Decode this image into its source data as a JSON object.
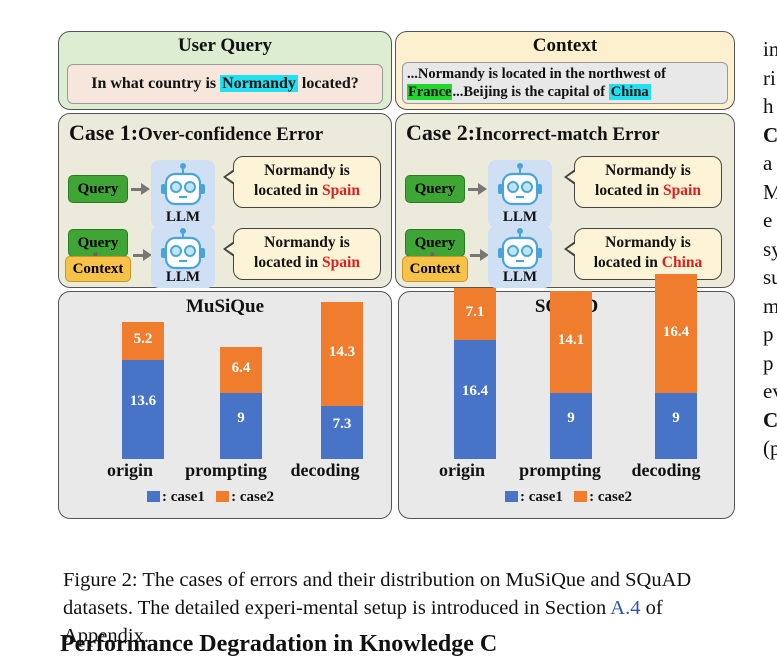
{
  "figure": {
    "user_query": {
      "title": "User Query",
      "text_before": "In what country is ",
      "highlight": "Normandy",
      "text_after": " located?"
    },
    "context": {
      "title": "Context",
      "line1": "...Normandy is located in the northwest of",
      "hl1": "France",
      "mid": "...Beijing is the capital of ",
      "hl2": "China"
    },
    "case1": {
      "title_main": "Case 1:",
      "title_sub": "Over-confidence Error",
      "query_tag": "Query",
      "context_tag": "Context",
      "llm_label": "LLM",
      "bubble1_line1": "Normandy is",
      "bubble1_prefix": "located in ",
      "bubble1_answer": "Spain",
      "bubble2_line1": "Normandy is",
      "bubble2_prefix": "located in ",
      "bubble2_answer": "Spain"
    },
    "case2": {
      "title_main": "Case 2:",
      "title_sub": "Incorrect-match Error",
      "query_tag": "Query",
      "context_tag": "Context",
      "llm_label": "LLM",
      "bubble1_line1": "Normandy is",
      "bubble1_prefix": "located in ",
      "bubble1_answer": "Spain",
      "bubble2_line1": "Normandy is",
      "bubble2_prefix": "located in ",
      "bubble2_answer": "China"
    },
    "colors": {
      "highlight_cyan": "#22e0f0",
      "highlight_green": "#22d62a",
      "query_green": "#3fa535",
      "context_yellow": "#f7c24a",
      "case1_color": "#4874c8",
      "case2_color": "#ef7d2d",
      "answer_red": "#e02020"
    }
  },
  "chart_data": [
    {
      "type": "bar",
      "title": "MuSiQue",
      "categories": [
        "origin",
        "prompting",
        "decoding"
      ],
      "stacked": true,
      "series": [
        {
          "name": ": case1",
          "values": [
            13.6,
            9,
            7.3
          ]
        },
        {
          "name": ": case2",
          "values": [
            5.2,
            6.4,
            14.3
          ]
        }
      ]
    },
    {
      "type": "bar",
      "title": "SQuAD",
      "categories": [
        "origin",
        "prompting",
        "decoding"
      ],
      "stacked": true,
      "series": [
        {
          "name": ": case1",
          "values": [
            16.4,
            9,
            9
          ]
        },
        {
          "name": ": case2",
          "values": [
            7.1,
            14.1,
            16.4
          ]
        }
      ]
    }
  ],
  "caption": {
    "text_before": "Figure 2: The cases of errors and their distribution on MuSiQue and SQuAD datasets. The detailed experi-mental setup is introduced in Section ",
    "link": "A.4",
    "text_after": " of Appendix."
  },
  "right_column": [
    "in",
    "ri",
    "h",
    "C",
    "a",
    "M",
    "e",
    "sy",
    "su",
    "m",
    "p",
    "p",
    "ev",
    "C",
    "(p"
  ],
  "next_heading": "Performance Degradation in Knowledge C"
}
